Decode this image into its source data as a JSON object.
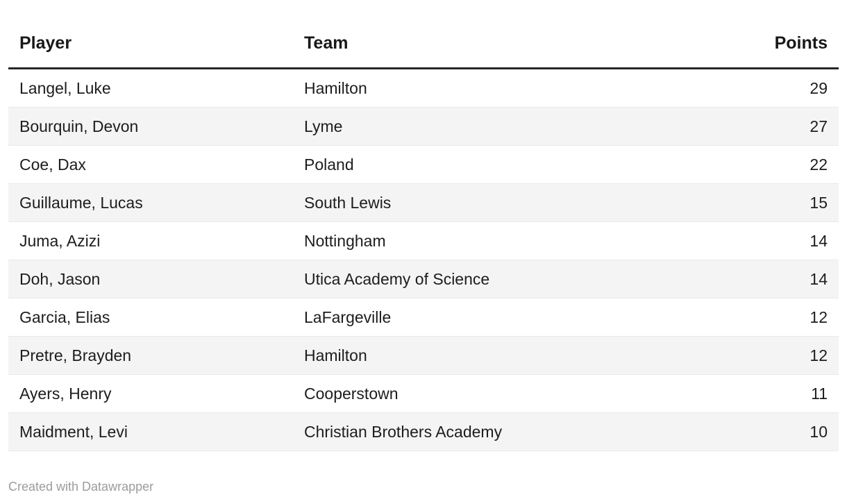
{
  "table": {
    "columns": [
      {
        "key": "player",
        "label": "Player",
        "align": "left"
      },
      {
        "key": "team",
        "label": "Team",
        "align": "left"
      },
      {
        "key": "points",
        "label": "Points",
        "align": "right"
      }
    ],
    "rows": [
      {
        "player": "Langel, Luke",
        "team": "Hamilton",
        "points": "29"
      },
      {
        "player": "Bourquin, Devon",
        "team": "Lyme",
        "points": "27"
      },
      {
        "player": "Coe, Dax",
        "team": "Poland",
        "points": "22"
      },
      {
        "player": "Guillaume, Lucas",
        "team": "South Lewis",
        "points": "15"
      },
      {
        "player": "Juma, Azizi",
        "team": "Nottingham",
        "points": "14"
      },
      {
        "player": "Doh, Jason",
        "team": "Utica Academy of Science",
        "points": "14"
      },
      {
        "player": "Garcia, Elias",
        "team": "LaFargeville",
        "points": "12"
      },
      {
        "player": "Pretre, Brayden",
        "team": "Hamilton",
        "points": "12"
      },
      {
        "player": "Ayers, Henry",
        "team": "Cooperstown",
        "points": "11"
      },
      {
        "player": "Maidment, Levi",
        "team": "Christian Brothers Academy",
        "points": "10"
      }
    ]
  },
  "footer": {
    "attribution": "Created with Datawrapper"
  },
  "colors": {
    "background": "#ffffff",
    "header_text": "#18181a",
    "body_text": "#1d1d1f",
    "header_rule": "#262626",
    "row_stripe": "#f4f4f4",
    "row_divider": "#e9e9e9",
    "attribution_text": "#9c9c9c"
  },
  "chart_data": {
    "type": "table",
    "columns": [
      "Player",
      "Team",
      "Points"
    ],
    "rows": [
      [
        "Langel, Luke",
        "Hamilton",
        29
      ],
      [
        "Bourquin, Devon",
        "Lyme",
        27
      ],
      [
        "Coe, Dax",
        "Poland",
        22
      ],
      [
        "Guillaume, Lucas",
        "South Lewis",
        15
      ],
      [
        "Juma, Azizi",
        "Nottingham",
        14
      ],
      [
        "Doh, Jason",
        "Utica Academy of Science",
        14
      ],
      [
        "Garcia, Elias",
        "LaFargeville",
        12
      ],
      [
        "Pretre, Brayden",
        "Hamilton",
        12
      ],
      [
        "Ayers, Henry",
        "Cooperstown",
        11
      ],
      [
        "Maidment, Levi",
        "Christian Brothers Academy",
        10
      ]
    ],
    "layout": {
      "striped_rows": true,
      "points_column_align": "right",
      "grid": "horizontal-dividers"
    }
  }
}
